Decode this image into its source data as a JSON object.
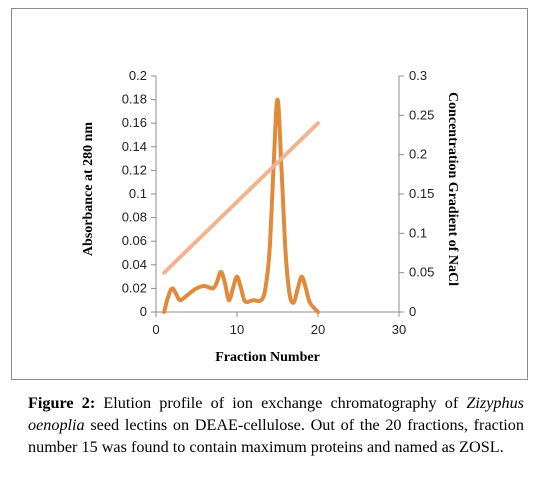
{
  "chart_data": {
    "type": "line",
    "xlabel": "Fraction Number",
    "ylabel_left": "Absorbance at 280 nm",
    "ylabel_right": "Concentration Gradient of NaCl",
    "xlim": [
      0,
      30
    ],
    "ylim_left": [
      0,
      0.2
    ],
    "ylim_right": [
      0,
      0.3
    ],
    "x_ticks": [
      "0",
      "10",
      "20",
      "30"
    ],
    "y_left_ticks": [
      "0",
      "0.02",
      "0.04",
      "0.06",
      "0.08",
      "0.1",
      "0.12",
      "0.14",
      "0.16",
      "0.18",
      "0.2"
    ],
    "y_right_ticks": [
      "0",
      "0.05",
      "0.1",
      "0.15",
      "0.2",
      "0.25",
      "0.3"
    ],
    "grid": false,
    "series": [
      {
        "axis": "left",
        "color": "#e08a3c",
        "x": [
          1,
          1.5,
          2,
          2.5,
          3,
          4,
          5,
          6,
          7,
          7.5,
          8,
          8.5,
          9,
          9.5,
          10,
          10.5,
          11,
          12,
          13,
          13.5,
          14,
          14.5,
          15,
          15.5,
          16,
          16.5,
          17,
          17.5,
          18,
          18.5,
          19,
          20
        ],
        "y": [
          0,
          0.013,
          0.02,
          0.015,
          0.01,
          0.015,
          0.02,
          0.022,
          0.02,
          0.025,
          0.034,
          0.025,
          0.01,
          0.02,
          0.03,
          0.02,
          0.009,
          0.01,
          0.01,
          0.02,
          0.05,
          0.12,
          0.18,
          0.12,
          0.05,
          0.015,
          0.008,
          0.02,
          0.03,
          0.02,
          0.008,
          0
        ]
      },
      {
        "axis": "right",
        "color": "#f2b48f",
        "x": [
          1,
          20
        ],
        "y": [
          0.05,
          0.24
        ]
      }
    ]
  },
  "caption": {
    "lead": "Figure 2:",
    "text_1": " Elution profile of ion exchange chromatography of ",
    "species": "Zizyphus oenoplia",
    "text_2": " seed lectins on DEAE-cellulose. Out of the 20 fractions, fraction number 15 was found to contain maximum proteins and named as ZOSL."
  }
}
